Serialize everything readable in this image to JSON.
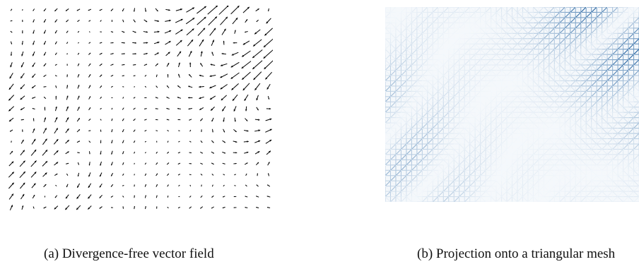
{
  "figure": {
    "subfigures": [
      {
        "id": "a",
        "caption": "(a) Divergence-free vector field",
        "visual": "quiver plot of short black arrows on a regular grid forming swirling vortex patterns"
      },
      {
        "id": "b",
        "caption": "(b) Projection onto a triangular mesh",
        "visual": "triangular mesh edges colored by magnitude, white to dark blue",
        "colors": {
          "low": "#f4f8fc",
          "high": "#1f5f9e"
        }
      }
    ]
  }
}
